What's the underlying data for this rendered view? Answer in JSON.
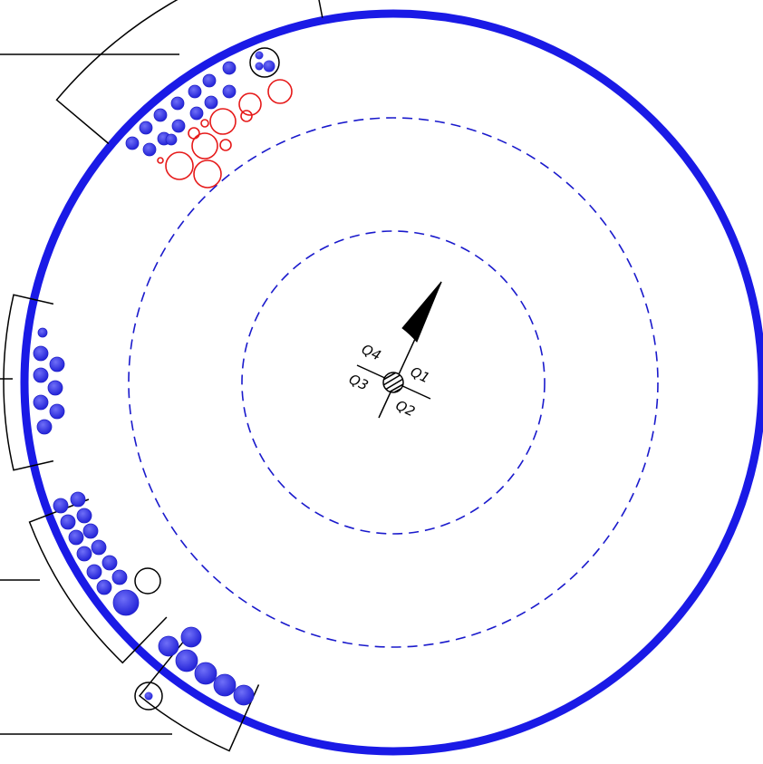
{
  "colors": {
    "ring": "#1a1ae6",
    "filled_circle": "#3333ee",
    "red_circle": "#e61919",
    "outline": "#000000",
    "dashed": "#1a1acc"
  },
  "center_marker": {
    "quadrants": [
      "Q1",
      "Q2",
      "Q3",
      "Q4"
    ]
  }
}
